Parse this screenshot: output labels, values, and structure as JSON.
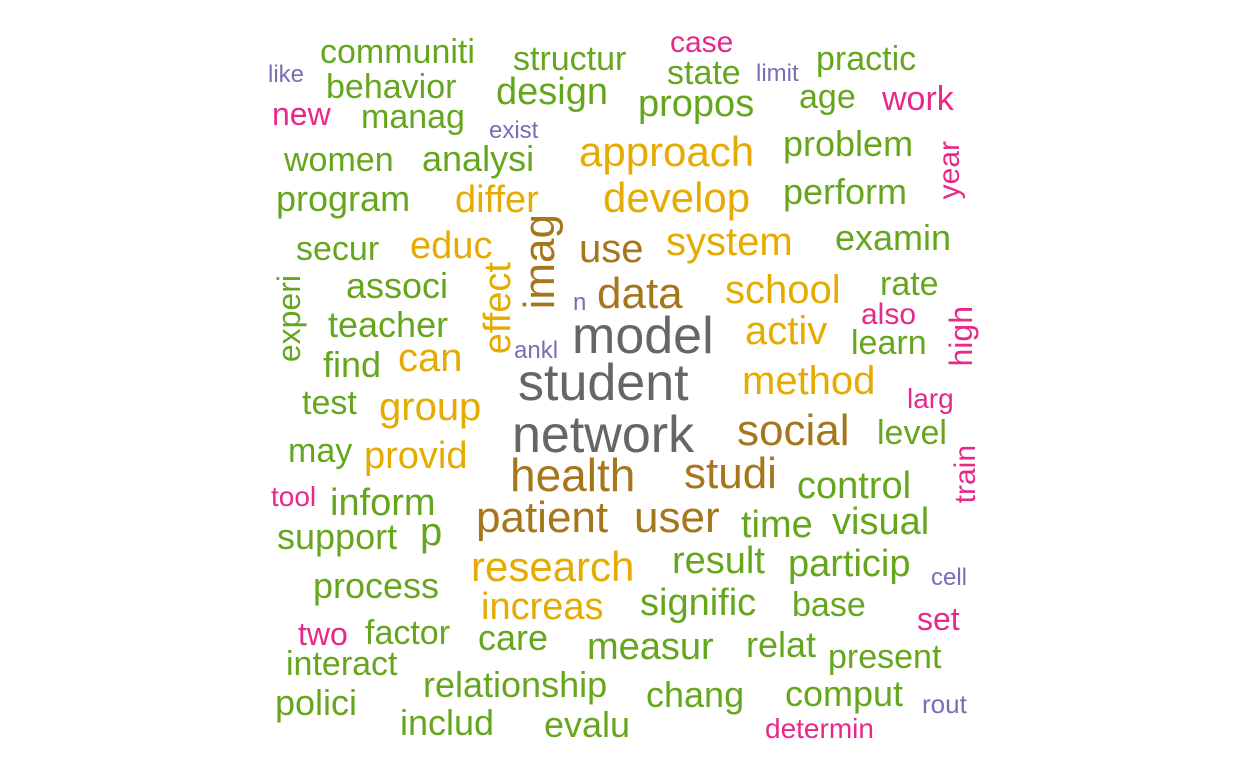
{
  "palette": {
    "gray": "#666666",
    "brown": "#A6761D",
    "gold": "#E6AB02",
    "green": "#66A61E",
    "pink": "#E7298A",
    "purple": "#7570B3"
  },
  "words": [
    {
      "text": "student",
      "color": "#666666",
      "weight": 4
    },
    {
      "text": "network",
      "color": "#666666",
      "weight": 4
    },
    {
      "text": "model",
      "color": "#666666",
      "weight": 4
    },
    {
      "text": "health",
      "color": "#A6761D",
      "weight": 3
    },
    {
      "text": "patient",
      "color": "#A6761D",
      "weight": 3
    },
    {
      "text": "user",
      "color": "#A6761D",
      "weight": 3
    },
    {
      "text": "data",
      "color": "#A6761D",
      "weight": 3
    },
    {
      "text": "imag",
      "color": "#A6761D",
      "weight": 3
    },
    {
      "text": "social",
      "color": "#A6761D",
      "weight": 3
    },
    {
      "text": "studi",
      "color": "#A6761D",
      "weight": 3
    },
    {
      "text": "use",
      "color": "#A6761D",
      "weight": 3
    },
    {
      "text": "research",
      "color": "#E6AB02",
      "weight": 2
    },
    {
      "text": "develop",
      "color": "#E6AB02",
      "weight": 2
    },
    {
      "text": "approach",
      "color": "#E6AB02",
      "weight": 2
    },
    {
      "text": "system",
      "color": "#E6AB02",
      "weight": 2
    },
    {
      "text": "effect",
      "color": "#E6AB02",
      "weight": 2
    },
    {
      "text": "method",
      "color": "#E6AB02",
      "weight": 2
    },
    {
      "text": "school",
      "color": "#E6AB02",
      "weight": 2
    },
    {
      "text": "activ",
      "color": "#E6AB02",
      "weight": 2
    },
    {
      "text": "group",
      "color": "#E6AB02",
      "weight": 2
    },
    {
      "text": "can",
      "color": "#E6AB02",
      "weight": 2
    },
    {
      "text": "differ",
      "color": "#E6AB02",
      "weight": 2
    },
    {
      "text": "educ",
      "color": "#E6AB02",
      "weight": 2
    },
    {
      "text": "provid",
      "color": "#E6AB02",
      "weight": 2
    },
    {
      "text": "increas",
      "color": "#E6AB02",
      "weight": 2
    },
    {
      "text": "communiti",
      "color": "#66A61E",
      "weight": 1
    },
    {
      "text": "structur",
      "color": "#66A61E",
      "weight": 1
    },
    {
      "text": "state",
      "color": "#66A61E",
      "weight": 1
    },
    {
      "text": "practic",
      "color": "#66A61E",
      "weight": 1
    },
    {
      "text": "behavior",
      "color": "#66A61E",
      "weight": 1
    },
    {
      "text": "design",
      "color": "#66A61E",
      "weight": 1
    },
    {
      "text": "propos",
      "color": "#66A61E",
      "weight": 1
    },
    {
      "text": "age",
      "color": "#66A61E",
      "weight": 1
    },
    {
      "text": "manag",
      "color": "#66A61E",
      "weight": 1
    },
    {
      "text": "women",
      "color": "#66A61E",
      "weight": 1
    },
    {
      "text": "analysi",
      "color": "#66A61E",
      "weight": 1
    },
    {
      "text": "problem",
      "color": "#66A61E",
      "weight": 1
    },
    {
      "text": "program",
      "color": "#66A61E",
      "weight": 1
    },
    {
      "text": "perform",
      "color": "#66A61E",
      "weight": 1
    },
    {
      "text": "secur",
      "color": "#66A61E",
      "weight": 1
    },
    {
      "text": "examin",
      "color": "#66A61E",
      "weight": 1
    },
    {
      "text": "associ",
      "color": "#66A61E",
      "weight": 1
    },
    {
      "text": "rate",
      "color": "#66A61E",
      "weight": 1
    },
    {
      "text": "teacher",
      "color": "#66A61E",
      "weight": 1
    },
    {
      "text": "learn",
      "color": "#66A61E",
      "weight": 1
    },
    {
      "text": "experi",
      "color": "#66A61E",
      "weight": 1
    },
    {
      "text": "find",
      "color": "#66A61E",
      "weight": 1
    },
    {
      "text": "test",
      "color": "#66A61E",
      "weight": 1
    },
    {
      "text": "level",
      "color": "#66A61E",
      "weight": 1
    },
    {
      "text": "may",
      "color": "#66A61E",
      "weight": 1
    },
    {
      "text": "inform",
      "color": "#66A61E",
      "weight": 1
    },
    {
      "text": "control",
      "color": "#66A61E",
      "weight": 1
    },
    {
      "text": "support",
      "color": "#66A61E",
      "weight": 1
    },
    {
      "text": "p",
      "color": "#66A61E",
      "weight": 1
    },
    {
      "text": "time",
      "color": "#66A61E",
      "weight": 1
    },
    {
      "text": "visual",
      "color": "#66A61E",
      "weight": 1
    },
    {
      "text": "result",
      "color": "#66A61E",
      "weight": 1
    },
    {
      "text": "particip",
      "color": "#66A61E",
      "weight": 1
    },
    {
      "text": "process",
      "color": "#66A61E",
      "weight": 1
    },
    {
      "text": "signific",
      "color": "#66A61E",
      "weight": 1
    },
    {
      "text": "base",
      "color": "#66A61E",
      "weight": 1
    },
    {
      "text": "factor",
      "color": "#66A61E",
      "weight": 1
    },
    {
      "text": "care",
      "color": "#66A61E",
      "weight": 1
    },
    {
      "text": "measur",
      "color": "#66A61E",
      "weight": 1
    },
    {
      "text": "relat",
      "color": "#66A61E",
      "weight": 1
    },
    {
      "text": "interact",
      "color": "#66A61E",
      "weight": 1
    },
    {
      "text": "present",
      "color": "#66A61E",
      "weight": 1
    },
    {
      "text": "relationship",
      "color": "#66A61E",
      "weight": 1
    },
    {
      "text": "polici",
      "color": "#66A61E",
      "weight": 1
    },
    {
      "text": "chang",
      "color": "#66A61E",
      "weight": 1
    },
    {
      "text": "comput",
      "color": "#66A61E",
      "weight": 1
    },
    {
      "text": "includ",
      "color": "#66A61E",
      "weight": 1
    },
    {
      "text": "evalu",
      "color": "#66A61E",
      "weight": 1
    },
    {
      "text": "case",
      "color": "#E7298A",
      "weight": 0
    },
    {
      "text": "new",
      "color": "#E7298A",
      "weight": 0
    },
    {
      "text": "work",
      "color": "#E7298A",
      "weight": 0
    },
    {
      "text": "year",
      "color": "#E7298A",
      "weight": 0
    },
    {
      "text": "also",
      "color": "#E7298A",
      "weight": 0
    },
    {
      "text": "high",
      "color": "#E7298A",
      "weight": 0
    },
    {
      "text": "larg",
      "color": "#E7298A",
      "weight": 0
    },
    {
      "text": "tool",
      "color": "#E7298A",
      "weight": 0
    },
    {
      "text": "train",
      "color": "#E7298A",
      "weight": 0
    },
    {
      "text": "two",
      "color": "#E7298A",
      "weight": 0
    },
    {
      "text": "set",
      "color": "#E7298A",
      "weight": 0
    },
    {
      "text": "determin",
      "color": "#E7298A",
      "weight": 0
    },
    {
      "text": "like",
      "color": "#7570B3",
      "weight": 0
    },
    {
      "text": "limit",
      "color": "#7570B3",
      "weight": 0
    },
    {
      "text": "exist",
      "color": "#7570B3",
      "weight": 0
    },
    {
      "text": "n",
      "color": "#7570B3",
      "weight": 0
    },
    {
      "text": "ankl",
      "color": "#7570B3",
      "weight": 0
    },
    {
      "text": "cell",
      "color": "#7570B3",
      "weight": 0
    },
    {
      "text": "rout",
      "color": "#7570B3",
      "weight": 0
    }
  ]
}
